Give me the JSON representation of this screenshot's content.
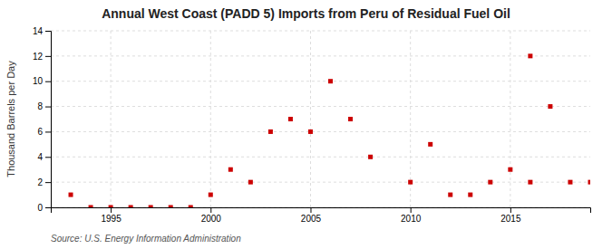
{
  "chart_data": {
    "type": "scatter",
    "title": "Annual West Coast (PADD 5) Imports from Peru of Residual Fuel Oil",
    "ylabel": "Thousand Barrels per Day",
    "annotations": [
      "Source: U.S. Energy Information Administration"
    ],
    "x": [
      1993,
      1994,
      1995,
      1996,
      1997,
      1998,
      1999,
      2000,
      2001,
      2002,
      2003,
      2004,
      2005,
      2006,
      2007,
      2008,
      2010,
      2011,
      2012,
      2013,
      2014,
      2015,
      2016,
      2016,
      2017,
      2018,
      2019
    ],
    "values": [
      1,
      0,
      0,
      0,
      0,
      0,
      0,
      1,
      3,
      2,
      6,
      7,
      6,
      10,
      7,
      4,
      2,
      5,
      1,
      1,
      2,
      3,
      12,
      2,
      8,
      2,
      2
    ],
    "color": "#cc0000",
    "marker": "square",
    "xlim": [
      1992,
      2019
    ],
    "ylim": [
      0,
      14
    ],
    "xticks": [
      1995,
      2000,
      2005,
      2010,
      2015
    ],
    "yticks": [
      0,
      2,
      4,
      6,
      8,
      10,
      12,
      14
    ],
    "grid": true
  }
}
